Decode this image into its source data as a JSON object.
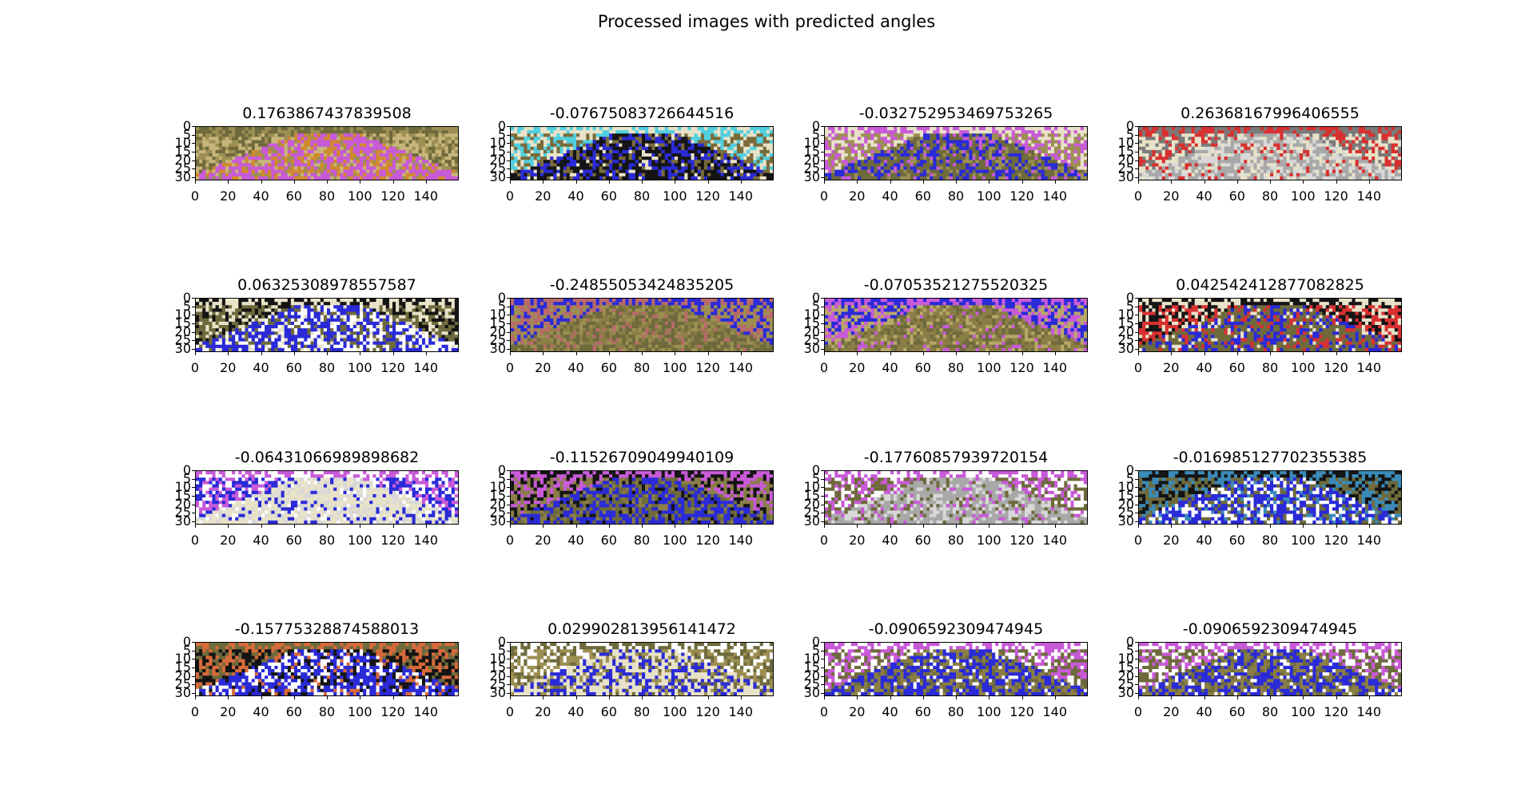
{
  "title": "Processed images with predicted angles",
  "chart_data": {
    "type": "image-grid",
    "title": "Processed images with predicted angles",
    "rows": 4,
    "cols": 4,
    "xticks": [
      0,
      20,
      40,
      60,
      80,
      100,
      120,
      140
    ],
    "yticks": [
      0,
      5,
      10,
      15,
      20,
      25,
      30
    ],
    "xlim": [
      0,
      160
    ],
    "ylim": [
      32,
      0
    ],
    "panels": [
      {
        "angle": "0.1763867437839508",
        "palette": [
          "#c85ad8",
          "#d08a2c",
          "#c8b57a",
          "#9c8f52",
          "#6e6a3c"
        ]
      },
      {
        "angle": "-0.07675083726644516",
        "palette": [
          "#141414",
          "#2a2ad8",
          "#7a6a3a",
          "#e8e2c8",
          "#4fd0e0"
        ]
      },
      {
        "angle": "-0.03275295346975326​5",
        "palette": [
          "#6e6a3c",
          "#2a2ad8",
          "#9c8f52",
          "#c85ad8",
          "#e8e2c8"
        ]
      },
      {
        "angle": "0.26368167996406555",
        "palette": [
          "#a8a8a8",
          "#d8d8d8",
          "#e8e2c8",
          "#d83030",
          "#7a7a7a"
        ]
      },
      {
        "angle": "0.06325308978557587",
        "palette": [
          "#2a2ad8",
          "#ffffff",
          "#6e6a3c",
          "#e8e2c8",
          "#141414"
        ]
      },
      {
        "angle": "-0.24855053424835205",
        "palette": [
          "#6e6a3c",
          "#8a7e46",
          "#9c8f52",
          "#b86a6a",
          "#2a2ad8"
        ]
      },
      {
        "angle": "-0.07053521275520325",
        "palette": [
          "#8a7e46",
          "#6e6a3c",
          "#b8a868",
          "#c85ad8",
          "#2a2ad8"
        ]
      },
      {
        "angle": "0.042542412877082825",
        "palette": [
          "#6e6a3c",
          "#2a2ad8",
          "#d83030",
          "#e8e2c8",
          "#141414"
        ]
      },
      {
        "angle": "-0.06431066989898682",
        "palette": [
          "#e8e2c8",
          "#d8d8d8",
          "#2a2ad8",
          "#ffffff",
          "#c85ad8"
        ]
      },
      {
        "angle": "-0.11526709049940109",
        "palette": [
          "#2a2ad8",
          "#6e6a3c",
          "#8a7e46",
          "#141414",
          "#c85ad8"
        ]
      },
      {
        "angle": "-0.17760857939720154",
        "palette": [
          "#a8a8a8",
          "#d8d8d8",
          "#6e6a3c",
          "#c85ad8",
          "#ffffff"
        ]
      },
      {
        "angle": "-0.016985127702355385",
        "palette": [
          "#2a2ad8",
          "#ffffff",
          "#6e6a3c",
          "#3a8ab8",
          "#141414"
        ]
      },
      {
        "angle": "-0.15775328874588013",
        "palette": [
          "#2a2ad8",
          "#ffffff",
          "#141414",
          "#d86a3a",
          "#6e6a3c"
        ]
      },
      {
        "angle": "0.029902813956141472",
        "palette": [
          "#e8e2c8",
          "#2a2ad8",
          "#9c8f52",
          "#6e6a3c",
          "#ffffff"
        ]
      },
      {
        "angle": "-0.0906592309474945",
        "palette": [
          "#2a2ad8",
          "#8a7e46",
          "#6e6a3c",
          "#ffffff",
          "#c85ad8"
        ]
      },
      {
        "angle": "-0.0906592309474945",
        "palette": [
          "#2a2ad8",
          "#8a7e46",
          "#6e6a3c",
          "#ffffff",
          "#c85ad8"
        ]
      }
    ]
  }
}
